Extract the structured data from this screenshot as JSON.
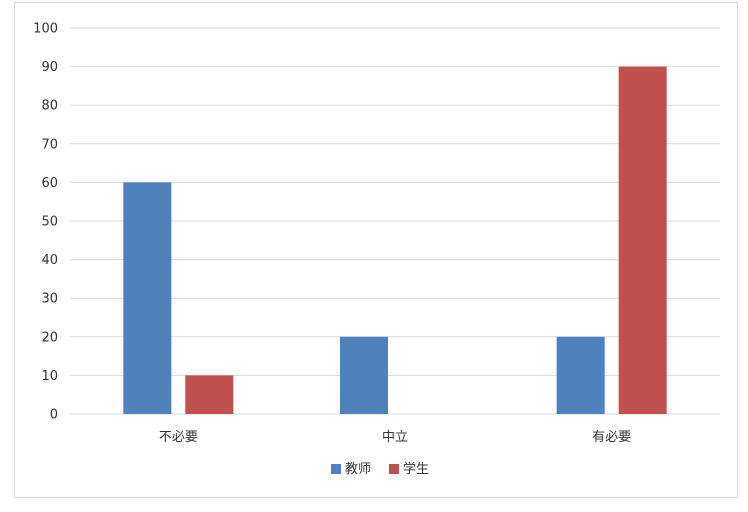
{
  "chart_data": {
    "type": "bar",
    "categories": [
      "不必要",
      "中立",
      "有必要"
    ],
    "series": [
      {
        "name": "教师",
        "color": "#4f81bd",
        "values": [
          60,
          20,
          20
        ]
      },
      {
        "name": "学生",
        "color": "#c0504d",
        "values": [
          10,
          0,
          90
        ]
      }
    ],
    "ylim": [
      0,
      100
    ],
    "yticks": [
      0,
      10,
      20,
      30,
      40,
      50,
      60,
      70,
      80,
      90,
      100
    ],
    "grid": true,
    "legend_position": "bottom",
    "gridline_color": "#d9d9d9"
  }
}
